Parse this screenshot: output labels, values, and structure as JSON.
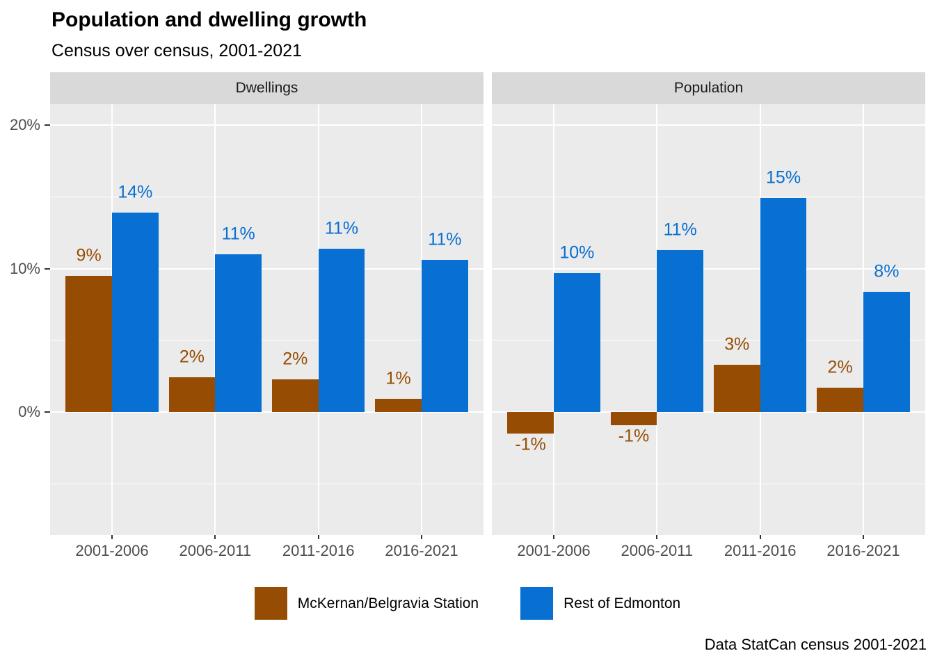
{
  "header": {
    "title": "Population and dwelling growth",
    "subtitle": "Census over census, 2001-2021"
  },
  "caption": "Data StatCan census 2001-2021",
  "legend": {
    "position": "bottom",
    "items": [
      {
        "label": "McKernan/Belgravia Station",
        "color": "#964D03"
      },
      {
        "label": "Rest of Edmonton",
        "color": "#086FD3"
      }
    ]
  },
  "chart_data": {
    "type": "bar",
    "title": "Population and dwelling growth",
    "subtitle": "Census over census, 2001-2021",
    "xlabel": "",
    "ylabel": "",
    "grid": true,
    "legend_position": "bottom",
    "categories": [
      "2001-2006",
      "2006-2011",
      "2011-2016",
      "2016-2021"
    ],
    "y_axis": {
      "ylim": [
        -8.6,
        21.5
      ],
      "major_ticks": [
        {
          "value": 0,
          "label": "0%"
        },
        {
          "value": 10,
          "label": "10%"
        },
        {
          "value": 20,
          "label": "20%"
        }
      ],
      "minor_ticks": [
        -5,
        5,
        15
      ]
    },
    "facets": [
      {
        "label": "Dwellings",
        "series": [
          {
            "name": "McKernan/Belgravia Station",
            "color": "#964D03",
            "values": [
              9.5,
              2.4,
              2.3,
              0.9
            ],
            "labels": [
              "9%",
              "2%",
              "2%",
              "1%"
            ]
          },
          {
            "name": "Rest of Edmonton",
            "color": "#086FD3",
            "values": [
              13.9,
              11.0,
              11.4,
              10.6
            ],
            "labels": [
              "14%",
              "11%",
              "11%",
              "11%"
            ]
          }
        ]
      },
      {
        "label": "Population",
        "series": [
          {
            "name": "McKernan/Belgravia Station",
            "color": "#964D03",
            "values": [
              -1.5,
              -0.9,
              3.3,
              1.7
            ],
            "labels": [
              "-1%",
              "-1%",
              "3%",
              "2%"
            ]
          },
          {
            "name": "Rest of Edmonton",
            "color": "#086FD3",
            "values": [
              9.7,
              11.3,
              14.9,
              8.4
            ],
            "labels": [
              "10%",
              "11%",
              "15%",
              "8%"
            ]
          }
        ]
      }
    ]
  },
  "style": {
    "panel_bg": "#EBEBEB",
    "strip_bg": "#D9D9D9",
    "grid_color": "#FFFFFF",
    "axis_text_color": "#4D4D4D",
    "tick_color": "#333333"
  }
}
